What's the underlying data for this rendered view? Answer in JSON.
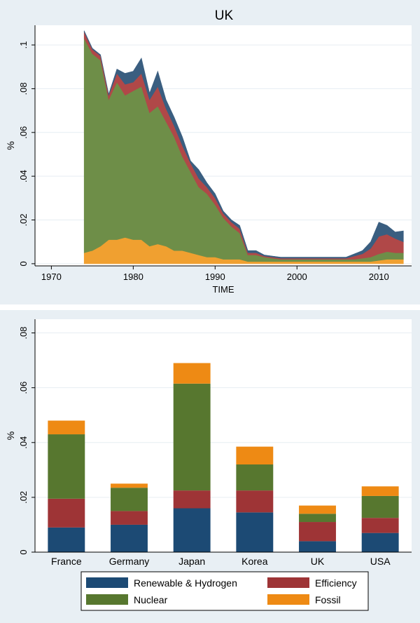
{
  "chart_data": [
    {
      "type": "area",
      "title": "UK",
      "xlabel": "TIME",
      "ylabel": "%",
      "xlim": [
        1968,
        2014
      ],
      "ylim": [
        -0.001,
        0.109
      ],
      "xticks": [
        1970,
        1980,
        1990,
        2000,
        2010
      ],
      "xtick_labels": [
        "1970",
        "1980",
        "1990",
        "2000",
        "2010"
      ],
      "yticks": [
        0,
        0.02,
        0.04,
        0.06,
        0.08,
        0.1
      ],
      "ytick_labels": [
        "0",
        ".02",
        ".04",
        ".06",
        ".08",
        ".1"
      ],
      "stacked": true,
      "x": [
        1974,
        1975,
        1976,
        1977,
        1978,
        1979,
        1980,
        1981,
        1982,
        1983,
        1984,
        1985,
        1986,
        1987,
        1988,
        1989,
        1990,
        1991,
        1992,
        1993,
        1994,
        1995,
        1996,
        1997,
        1998,
        1999,
        2000,
        2001,
        2002,
        2003,
        2004,
        2005,
        2006,
        2007,
        2008,
        2009,
        2010,
        2011,
        2012,
        2013
      ],
      "series": [
        {
          "name": "Fossil",
          "color": "#F0A030",
          "values": [
            0.005,
            0.006,
            0.008,
            0.011,
            0.011,
            0.012,
            0.011,
            0.011,
            0.008,
            0.009,
            0.008,
            0.006,
            0.006,
            0.005,
            0.004,
            0.003,
            0.003,
            0.002,
            0.002,
            0.002,
            0.001,
            0.001,
            0.001,
            0.001,
            0.001,
            0.001,
            0.001,
            0.001,
            0.001,
            0.001,
            0.001,
            0.001,
            0.001,
            0.001,
            0.001,
            0.001,
            0.0015,
            0.002,
            0.002,
            0.002
          ]
        },
        {
          "name": "Nuclear",
          "color": "#6E8E48",
          "values": [
            0.098,
            0.09,
            0.085,
            0.064,
            0.072,
            0.065,
            0.068,
            0.07,
            0.061,
            0.063,
            0.057,
            0.052,
            0.043,
            0.037,
            0.031,
            0.029,
            0.024,
            0.019,
            0.015,
            0.012,
            0.003,
            0.003,
            0.002,
            0.0015,
            0.001,
            0.001,
            0.001,
            0.001,
            0.001,
            0.001,
            0.001,
            0.001,
            0.001,
            0.001,
            0.0015,
            0.002,
            0.003,
            0.0035,
            0.003,
            0.003
          ]
        },
        {
          "name": "Efficiency",
          "color": "#B04848",
          "values": [
            0.003,
            0.002,
            0.002,
            0.002,
            0.004,
            0.005,
            0.004,
            0.006,
            0.006,
            0.009,
            0.006,
            0.005,
            0.005,
            0.004,
            0.004,
            0.003,
            0.003,
            0.002,
            0.002,
            0.002,
            0.001,
            0.001,
            0.0005,
            0.0005,
            0.0005,
            0.0005,
            0.0005,
            0.0005,
            0.0005,
            0.0005,
            0.0005,
            0.0005,
            0.0005,
            0.0015,
            0.002,
            0.004,
            0.008,
            0.008,
            0.0065,
            0.005
          ]
        },
        {
          "name": "Renewable & Hydrogen",
          "color": "#3A5E80",
          "values": [
            0.0005,
            0.0005,
            0.0005,
            0.0005,
            0.002,
            0.005,
            0.005,
            0.007,
            0.003,
            0.007,
            0.004,
            0.004,
            0.004,
            0.001,
            0.004,
            0.002,
            0.002,
            0.001,
            0.001,
            0.0015,
            0.001,
            0.001,
            0.0005,
            0.0005,
            0.0005,
            0.0005,
            0.0005,
            0.0005,
            0.0005,
            0.0005,
            0.0005,
            0.0005,
            0.0005,
            0.001,
            0.0015,
            0.003,
            0.0065,
            0.004,
            0.003,
            0.005
          ]
        }
      ]
    },
    {
      "type": "bar",
      "stacked": true,
      "ylabel": "%",
      "ylim": [
        0,
        0.085
      ],
      "yticks": [
        0,
        0.02,
        0.04,
        0.06,
        0.08
      ],
      "ytick_labels": [
        "0",
        ".02",
        ".04",
        ".06",
        ".08"
      ],
      "categories": [
        "France",
        "Germany",
        "Japan",
        "Korea",
        "UK",
        "USA"
      ],
      "series": [
        {
          "name": "Renewable & Hydrogen",
          "color": "#1C4A74",
          "values": [
            0.009,
            0.01,
            0.016,
            0.0145,
            0.004,
            0.007
          ]
        },
        {
          "name": "Efficiency",
          "color": "#9E3436",
          "values": [
            0.0105,
            0.005,
            0.0065,
            0.008,
            0.007,
            0.0055
          ]
        },
        {
          "name": "Nuclear",
          "color": "#57772F",
          "values": [
            0.0235,
            0.0085,
            0.039,
            0.0095,
            0.003,
            0.008
          ]
        },
        {
          "name": "Fossil",
          "color": "#EE8A14",
          "values": [
            0.005,
            0.0015,
            0.0075,
            0.0065,
            0.003,
            0.0035
          ]
        }
      ]
    }
  ],
  "legend": {
    "items": [
      {
        "label": "Renewable & Hydrogen",
        "color": "#1C4A74"
      },
      {
        "label": "Efficiency",
        "color": "#9E3436"
      },
      {
        "label": "Nuclear",
        "color": "#57772F"
      },
      {
        "label": "Fossil",
        "color": "#EE8A14"
      }
    ]
  },
  "colors": {
    "panel_bg": "#E8EFF4",
    "plot_bg": "#FFFFFF",
    "grid": "#E6EDF2"
  }
}
